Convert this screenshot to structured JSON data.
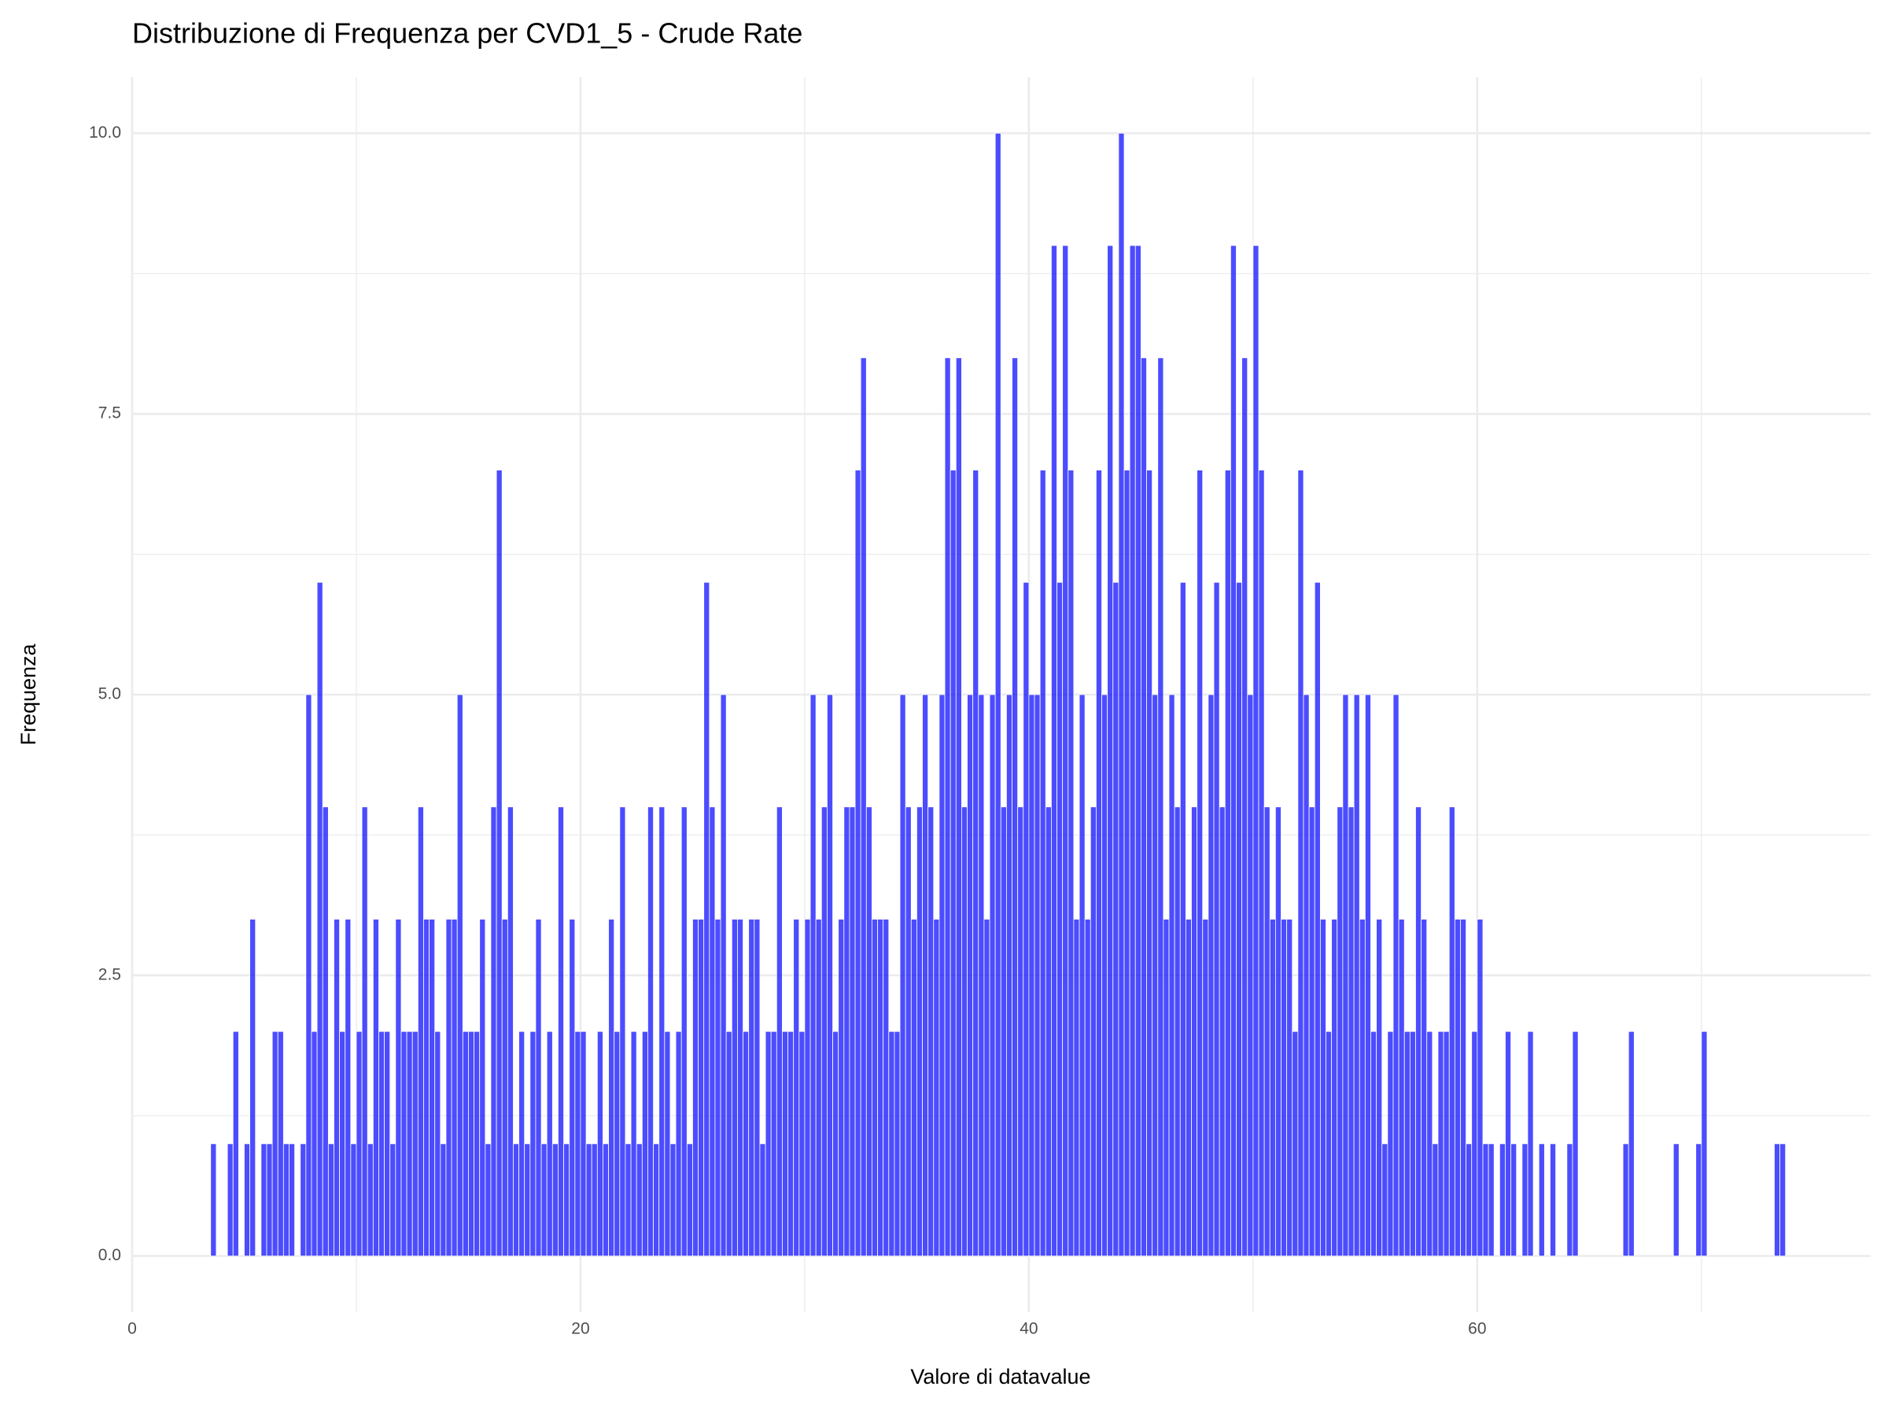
{
  "chart_data": {
    "type": "histogram",
    "title": "Distribuzione di Frequenza per CVD1_5 - Crude Rate",
    "x_label": "Valore di datavalue",
    "y_label": "Frequenza",
    "color": "#0000ff",
    "grid": true,
    "xlim": [
      0,
      77.55
    ],
    "ylim": [
      -0.5,
      10.5
    ],
    "xticks": [
      0,
      20,
      40,
      60
    ],
    "yticks": [
      {
        "value": 0,
        "label": "0.0"
      },
      2.5,
      {
        "value": 5,
        "label": "5.0"
      },
      7.5,
      {
        "value": 10,
        "label": "10.0"
      }
    ],
    "bins": [
      3.5,
      3.75,
      4,
      4.25,
      4.5,
      4.75,
      5,
      5.25,
      5.5,
      5.75,
      6,
      6.25,
      6.5,
      6.75,
      7,
      7.25,
      7.5,
      7.75,
      8,
      8.25,
      8.5,
      8.75,
      9,
      9.25,
      9.5,
      9.75,
      10,
      10.25,
      10.5,
      10.75,
      11,
      11.25,
      11.5,
      11.75,
      12,
      12.25,
      12.5,
      12.75,
      13,
      13.25,
      13.5,
      13.75,
      14,
      14.25,
      14.5,
      14.75,
      15,
      15.25,
      15.5,
      15.75,
      16,
      16.25,
      16.5,
      16.75,
      17,
      17.25,
      17.5,
      17.75,
      18,
      18.25,
      18.5,
      18.75,
      19,
      19.25,
      19.5,
      19.75,
      20,
      20.25,
      20.5,
      20.75,
      21,
      21.25,
      21.5,
      21.75,
      22,
      22.25,
      22.5,
      22.75,
      23,
      23.25,
      23.5,
      23.75,
      24,
      24.25,
      24.5,
      24.75,
      25,
      25.25,
      25.5,
      25.75,
      26,
      26.25,
      26.5,
      26.75,
      27,
      27.25,
      27.5,
      27.75,
      28,
      28.25,
      28.5,
      28.75,
      29,
      29.25,
      29.5,
      29.75,
      30,
      30.25,
      30.5,
      30.75,
      31,
      31.25,
      31.5,
      31.75,
      32,
      32.25,
      32.5,
      32.75,
      33,
      33.25,
      33.5,
      33.75,
      34,
      34.25,
      34.5,
      34.75,
      35,
      35.25,
      35.5,
      35.75,
      36,
      36.25,
      36.5,
      36.75,
      37,
      37.25,
      37.5,
      37.75,
      38,
      38.25,
      38.5,
      38.75,
      39,
      39.25,
      39.5,
      39.75,
      40,
      40.25,
      40.5,
      40.75,
      41,
      41.25,
      41.5,
      41.75,
      42,
      42.25,
      42.5,
      42.75,
      43,
      43.25,
      43.5,
      43.75,
      44,
      44.25,
      44.5,
      44.75,
      45,
      45.25,
      45.5,
      45.75,
      46,
      46.25,
      46.5,
      46.75,
      47,
      47.25,
      47.5,
      47.75,
      48,
      48.25,
      48.5,
      48.75,
      49,
      49.25,
      49.5,
      49.75,
      50,
      50.25,
      50.5,
      50.75,
      51,
      51.25,
      51.5,
      51.75,
      52,
      52.25,
      52.5,
      52.75,
      53,
      53.25,
      53.5,
      53.75,
      54,
      54.25,
      54.5,
      54.75,
      55,
      55.25,
      55.5,
      55.75,
      56,
      56.25,
      56.5,
      56.75,
      57,
      57.25,
      57.5,
      57.75,
      58,
      58.25,
      58.5,
      58.75,
      59,
      59.25,
      59.5,
      59.75,
      60,
      60.25,
      60.5,
      60.75,
      61,
      61.25,
      61.5,
      61.75,
      62,
      62.25,
      62.5,
      62.75,
      63,
      63.25,
      63.5,
      63.75,
      64,
      64.25,
      64.5,
      64.75,
      65,
      65.25,
      65.5,
      65.75,
      66,
      66.25,
      66.5,
      66.75,
      67,
      67.25,
      67.5,
      67.75,
      68,
      68.25,
      68.5,
      68.75,
      69,
      69.25,
      69.5,
      69.75,
      70,
      70.25,
      70.5,
      70.75,
      71,
      71.25,
      71.5,
      71.75,
      72,
      72.25,
      72.5,
      72.75,
      73,
      73.25,
      73.5,
      73.75,
      74
    ],
    "values": [
      1,
      0,
      0,
      1,
      2,
      0,
      1,
      3,
      0,
      1,
      1,
      2,
      2,
      1,
      1,
      0,
      1,
      5,
      2,
      6,
      4,
      1,
      3,
      2,
      3,
      1,
      2,
      4,
      1,
      3,
      2,
      2,
      1,
      3,
      2,
      2,
      2,
      4,
      3,
      3,
      2,
      1,
      3,
      3,
      5,
      2,
      2,
      2,
      3,
      1,
      4,
      7,
      3,
      4,
      1,
      2,
      1,
      2,
      3,
      1,
      2,
      1,
      4,
      1,
      3,
      2,
      2,
      1,
      1,
      2,
      1,
      3,
      2,
      4,
      1,
      2,
      1,
      2,
      4,
      1,
      4,
      2,
      1,
      2,
      4,
      1,
      3,
      3,
      6,
      4,
      3,
      5,
      2,
      3,
      3,
      2,
      3,
      3,
      1,
      2,
      2,
      4,
      2,
      2,
      3,
      2,
      3,
      5,
      3,
      4,
      5,
      2,
      3,
      4,
      4,
      7,
      8,
      4,
      3,
      3,
      3,
      2,
      2,
      5,
      4,
      3,
      4,
      5,
      4,
      3,
      5,
      8,
      7,
      8,
      4,
      5,
      7,
      5,
      3,
      5,
      10,
      4,
      5,
      8,
      4,
      6,
      5,
      5,
      7,
      4,
      9,
      6,
      9,
      7,
      3,
      5,
      3,
      4,
      7,
      5,
      9,
      6,
      10,
      7,
      9,
      9,
      8,
      7,
      5,
      8,
      3,
      5,
      4,
      6,
      3,
      4,
      7,
      3,
      5,
      6,
      4,
      7,
      9,
      6,
      8,
      5,
      9,
      7,
      4,
      3,
      4,
      3,
      3,
      2,
      7,
      5,
      4,
      6,
      3,
      2,
      3,
      4,
      5,
      4,
      5,
      3,
      5,
      2,
      3,
      1,
      2,
      5,
      3,
      2,
      2,
      4,
      3,
      2,
      1,
      2,
      2,
      4,
      3,
      3,
      1,
      2,
      3,
      1,
      1,
      0,
      1,
      2,
      1,
      0,
      1,
      2,
      0,
      1,
      0,
      1,
      0,
      0,
      1,
      2,
      0,
      0,
      0,
      0,
      0,
      0,
      0,
      0,
      1,
      2,
      0,
      0,
      0,
      0,
      0,
      0,
      0,
      1,
      0,
      0,
      0,
      1,
      2,
      0,
      0,
      0,
      0,
      0,
      0,
      0,
      0,
      0,
      0,
      0,
      0,
      1,
      1,
      0
    ]
  }
}
